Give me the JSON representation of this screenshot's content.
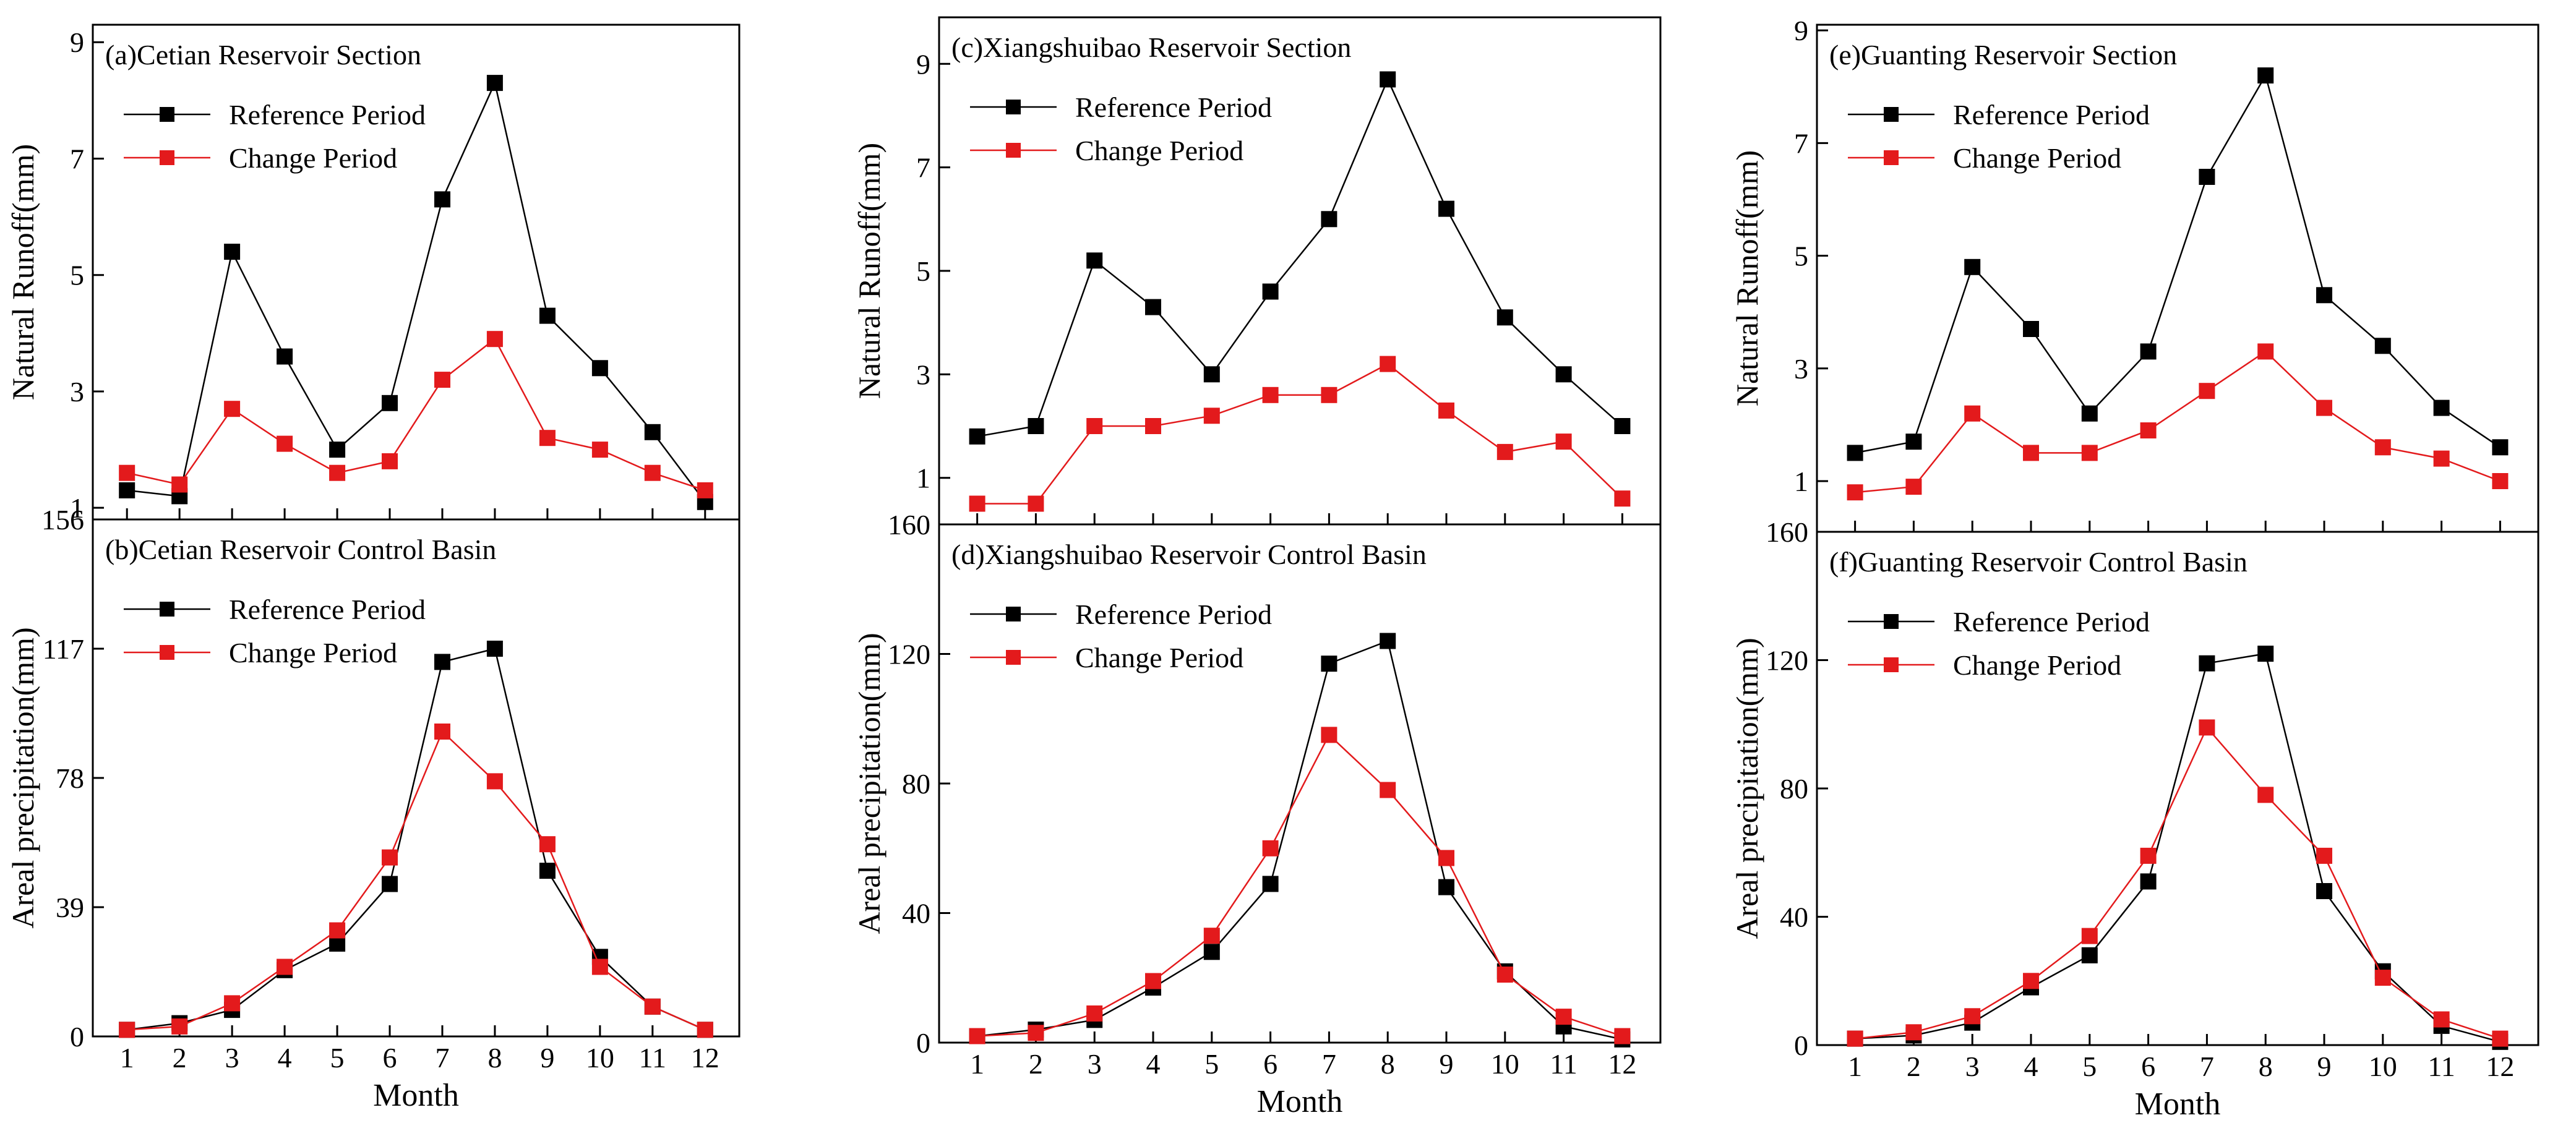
{
  "figure": {
    "columns": [
      {
        "id": "cetian",
        "runoff": {
          "title": "(a)Cetian Reservoir Section",
          "ylabel": "Natural Runoff(mm)",
          "yticks": [
            1,
            3,
            5,
            7,
            9
          ],
          "ylim": [
            0.8,
            9.3
          ]
        },
        "precip": {
          "title": "(b)Cetian Reservoir Control Basin",
          "ylabel": "Areal precipitation(mm)",
          "yticks": [
            0,
            39,
            78,
            117,
            156
          ],
          "ylim": [
            0,
            156
          ]
        }
      },
      {
        "id": "xiangshuibao",
        "runoff": {
          "title": "(c)Xiangshuibao Reservoir Section",
          "ylabel": "Natural Runoff(mm)",
          "yticks": [
            1,
            3,
            5,
            7,
            9
          ],
          "ylim": [
            0.1,
            9.9
          ]
        },
        "precip": {
          "title": "(d)Xiangshuibao Reservoir Control Basin",
          "ylabel": "Areal precipitation(mm)",
          "yticks": [
            0,
            40,
            80,
            120,
            160
          ],
          "ylim": [
            0,
            160
          ]
        }
      },
      {
        "id": "guanting",
        "runoff": {
          "title": "(e)Guanting Reservoir Section",
          "ylabel": "Natural Runoff(mm)",
          "yticks": [
            1,
            3,
            5,
            7,
            9
          ],
          "ylim": [
            0.1,
            9.1
          ]
        },
        "precip": {
          "title": "(f)Guanting Reservoir Control Basin",
          "ylabel": "Areal precipitation(mm)",
          "yticks": [
            0,
            40,
            80,
            120,
            160
          ],
          "ylim": [
            0,
            160
          ]
        }
      }
    ],
    "xlabel": "Month",
    "legend": {
      "reference": "Reference Period",
      "change": "Change Period"
    }
  },
  "chart_data": [
    {
      "type": "line",
      "title": "(a)Cetian Reservoir Section",
      "xlabel": "Month",
      "ylabel": "Natural Runoff(mm)",
      "x": [
        1,
        2,
        3,
        4,
        5,
        6,
        7,
        8,
        9,
        10,
        11,
        12
      ],
      "ylim": [
        0.8,
        9.3
      ],
      "series": [
        {
          "name": "Reference Period",
          "color": "#000000",
          "values": [
            1.3,
            1.2,
            5.4,
            3.6,
            2.0,
            2.8,
            6.3,
            8.3,
            4.3,
            3.4,
            2.3,
            1.1
          ]
        },
        {
          "name": "Change Period",
          "color": "#e31a1c",
          "values": [
            1.6,
            1.4,
            2.7,
            2.1,
            1.6,
            1.8,
            3.2,
            3.9,
            2.2,
            2.0,
            1.6,
            1.3
          ]
        }
      ]
    },
    {
      "type": "line",
      "title": "(b)Cetian Reservoir Control Basin",
      "xlabel": "Month",
      "ylabel": "Areal precipitation(mm)",
      "x": [
        1,
        2,
        3,
        4,
        5,
        6,
        7,
        8,
        9,
        10,
        11,
        12
      ],
      "ylim": [
        0,
        156
      ],
      "series": [
        {
          "name": "Reference Period",
          "color": "#000000",
          "values": [
            2,
            4,
            8,
            20,
            28,
            46,
            113,
            117,
            50,
            24,
            9,
            2
          ]
        },
        {
          "name": "Change Period",
          "color": "#e31a1c",
          "values": [
            2,
            3,
            10,
            21,
            32,
            54,
            92,
            77,
            58,
            21,
            9,
            2
          ]
        }
      ]
    },
    {
      "type": "line",
      "title": "(c)Xiangshuibao Reservoir Section",
      "xlabel": "Month",
      "ylabel": "Natural Runoff(mm)",
      "x": [
        1,
        2,
        3,
        4,
        5,
        6,
        7,
        8,
        9,
        10,
        11,
        12
      ],
      "ylim": [
        0.1,
        9.9
      ],
      "series": [
        {
          "name": "Reference Period",
          "color": "#000000",
          "values": [
            1.8,
            2.0,
            5.2,
            4.3,
            3.0,
            4.6,
            6.0,
            8.7,
            6.2,
            4.1,
            3.0,
            2.0
          ]
        },
        {
          "name": "Change Period",
          "color": "#e31a1c",
          "values": [
            0.5,
            0.5,
            2.0,
            2.0,
            2.2,
            2.6,
            2.6,
            3.2,
            2.3,
            1.5,
            1.7,
            0.6
          ]
        }
      ]
    },
    {
      "type": "line",
      "title": "(d)Xiangshuibao Reservoir Control Basin",
      "xlabel": "Month",
      "ylabel": "Areal precipitation(mm)",
      "x": [
        1,
        2,
        3,
        4,
        5,
        6,
        7,
        8,
        9,
        10,
        11,
        12
      ],
      "ylim": [
        0,
        160
      ],
      "series": [
        {
          "name": "Reference Period",
          "color": "#000000",
          "values": [
            2,
            4,
            7,
            17,
            28,
            49,
            117,
            124,
            48,
            22,
            5,
            1
          ]
        },
        {
          "name": "Change Period",
          "color": "#e31a1c",
          "values": [
            2,
            3,
            9,
            19,
            33,
            60,
            95,
            78,
            57,
            21,
            8,
            2
          ]
        }
      ]
    },
    {
      "type": "line",
      "title": "(e)Guanting Reservoir Section",
      "xlabel": "Month",
      "ylabel": "Natural Runoff(mm)",
      "x": [
        1,
        2,
        3,
        4,
        5,
        6,
        7,
        8,
        9,
        10,
        11,
        12
      ],
      "ylim": [
        0.1,
        9.1
      ],
      "series": [
        {
          "name": "Reference Period",
          "color": "#000000",
          "values": [
            1.5,
            1.7,
            4.8,
            3.7,
            2.2,
            3.3,
            6.4,
            8.2,
            4.3,
            3.4,
            2.3,
            1.6
          ]
        },
        {
          "name": "Change Period",
          "color": "#e31a1c",
          "values": [
            0.8,
            0.9,
            2.2,
            1.5,
            1.5,
            1.9,
            2.6,
            3.3,
            2.3,
            1.6,
            1.4,
            1.0
          ]
        }
      ]
    },
    {
      "type": "line",
      "title": "(f)Guanting Reservoir Control Basin",
      "xlabel": "Month",
      "ylabel": "Areal precipitation(mm)",
      "x": [
        1,
        2,
        3,
        4,
        5,
        6,
        7,
        8,
        9,
        10,
        11,
        12
      ],
      "ylim": [
        0,
        160
      ],
      "series": [
        {
          "name": "Reference Period",
          "color": "#000000",
          "values": [
            2,
            3,
            7,
            18,
            28,
            51,
            119,
            122,
            48,
            23,
            6,
            1
          ]
        },
        {
          "name": "Change Period",
          "color": "#e31a1c",
          "values": [
            2,
            4,
            9,
            20,
            34,
            59,
            99,
            78,
            59,
            21,
            8,
            2
          ]
        }
      ]
    }
  ]
}
